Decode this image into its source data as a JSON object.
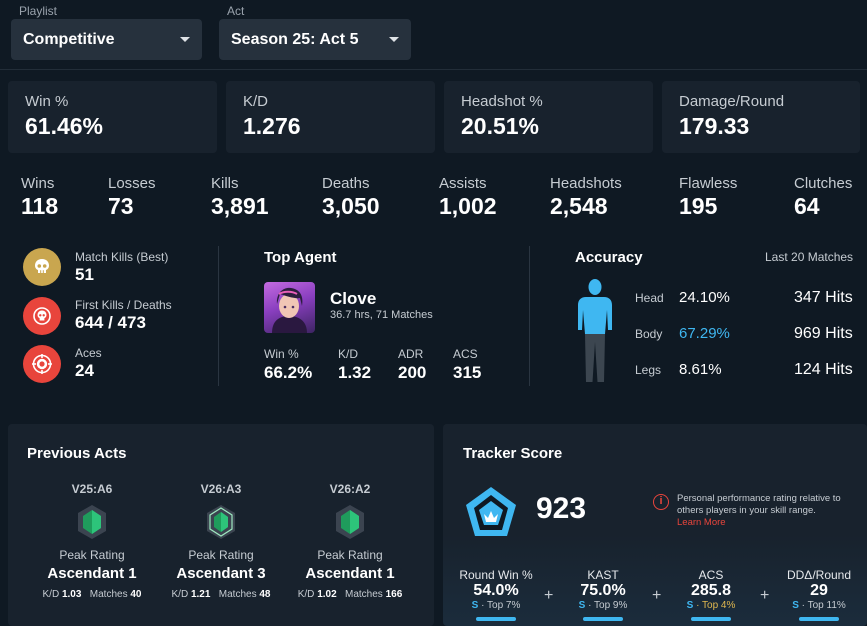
{
  "filters": {
    "playlist_label": "Playlist",
    "playlist_value": "Competitive",
    "act_label": "Act",
    "act_value": "Season 25: Act 5"
  },
  "top_cards": [
    {
      "label": "Win %",
      "value": "61.46%"
    },
    {
      "label": "K/D",
      "value": "1.276"
    },
    {
      "label": "Headshot %",
      "value": "20.51%"
    },
    {
      "label": "Damage/Round",
      "value": "179.33"
    }
  ],
  "stats": [
    {
      "label": "Wins",
      "value": "118"
    },
    {
      "label": "Losses",
      "value": "73"
    },
    {
      "label": "Kills",
      "value": "3,891"
    },
    {
      "label": "Deaths",
      "value": "3,050"
    },
    {
      "label": "Assists",
      "value": "1,002"
    },
    {
      "label": "Headshots",
      "value": "2,548"
    },
    {
      "label": "Flawless",
      "value": "195"
    },
    {
      "label": "Clutches",
      "value": "64"
    }
  ],
  "highlights": [
    {
      "label": "Match Kills (Best)",
      "value": "51",
      "icon": "skull-icon",
      "color": "#c9a64f"
    },
    {
      "label": "First Kills / Deaths",
      "value": "644 / 473",
      "icon": "first-blood-icon",
      "color": "#e8453c"
    },
    {
      "label": "Aces",
      "value": "24",
      "icon": "ace-icon",
      "color": "#e8453c"
    }
  ],
  "top_agent": {
    "title": "Top Agent",
    "name": "Clove",
    "meta": "36.7 hrs, 71 Matches",
    "stats": [
      {
        "label": "Win %",
        "value": "66.2%"
      },
      {
        "label": "K/D",
        "value": "1.32"
      },
      {
        "label": "ADR",
        "value": "200"
      },
      {
        "label": "ACS",
        "value": "315"
      }
    ]
  },
  "accuracy": {
    "title": "Accuracy",
    "subtitle": "Last 20 Matches",
    "rows": [
      {
        "label": "Head",
        "pct": "24.10%",
        "hits": "347 Hits"
      },
      {
        "label": "Body",
        "pct": "67.29%",
        "hits": "969 Hits"
      },
      {
        "label": "Legs",
        "pct": "8.61%",
        "hits": "124 Hits"
      }
    ],
    "highlight_color": "#3fb7f1"
  },
  "previous_acts": {
    "title": "Previous Acts",
    "peak_label": "Peak Rating",
    "kd_label": "K/D",
    "matches_label": "Matches",
    "acts": [
      {
        "code": "V25:A6",
        "rank": "Ascendant 1",
        "kd": "1.03",
        "matches": "40"
      },
      {
        "code": "V26:A3",
        "rank": "Ascendant 3",
        "kd": "1.21",
        "matches": "48"
      },
      {
        "code": "V26:A2",
        "rank": "Ascendant 1",
        "kd": "1.02",
        "matches": "166"
      }
    ]
  },
  "tracker_score": {
    "title": "Tracker Score",
    "score": "923",
    "info": "Personal performance rating relative to others players in your skill range.",
    "learn_more": "Learn More",
    "metrics": [
      {
        "label": "Round Win %",
        "value": "54.0%",
        "grade": "S",
        "top": "· Top 7%"
      },
      {
        "label": "KAST",
        "value": "75.0%",
        "grade": "S",
        "top": "· Top 9%"
      },
      {
        "label": "ACS",
        "value": "285.8",
        "grade": "S",
        "top": "· Top 4%"
      },
      {
        "label": "DDΔ/Round",
        "value": "29",
        "grade": "S",
        "top": "· Top 11%"
      }
    ]
  }
}
